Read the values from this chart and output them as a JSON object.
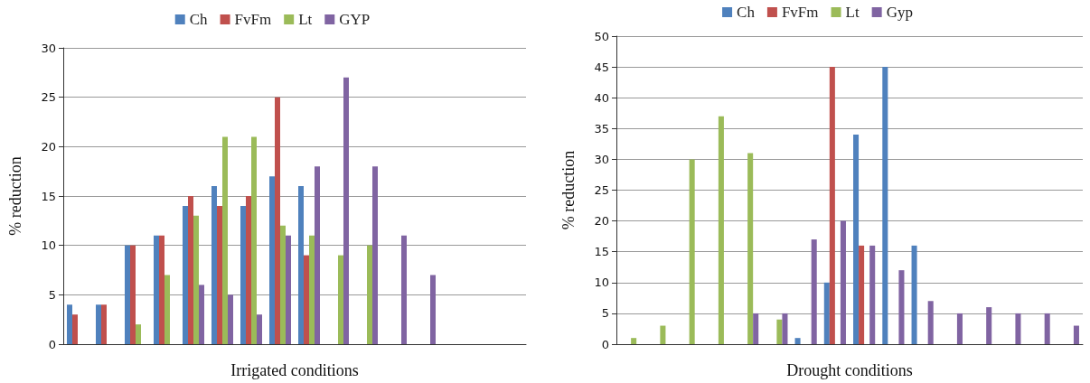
{
  "chart_data": [
    {
      "type": "bar",
      "xlabel": "Irrigated conditions",
      "ylabel": "% reduction",
      "categories": [
        null,
        null,
        null,
        null,
        null,
        null,
        null,
        null,
        null,
        null,
        null,
        null,
        null,
        null,
        null,
        null
      ],
      "series": [
        {
          "name": "Ch",
          "color": "#4f81bd",
          "values": [
            4,
            4,
            10,
            11,
            14,
            16,
            14,
            17,
            16,
            null,
            null,
            null,
            null,
            null,
            null,
            null
          ]
        },
        {
          "name": "FvFm",
          "color": "#c0504d",
          "values": [
            3,
            4,
            10,
            11,
            15,
            14,
            15,
            25,
            9,
            null,
            null,
            null,
            null,
            null,
            null,
            null
          ]
        },
        {
          "name": "Lt",
          "color": "#9bbb59",
          "values": [
            null,
            null,
            2,
            7,
            13,
            21,
            21,
            12,
            11,
            9,
            10,
            null,
            null,
            null,
            null,
            null
          ]
        },
        {
          "name": "GYP",
          "color": "#8064a2",
          "values": [
            null,
            null,
            null,
            null,
            6,
            5,
            3,
            11,
            18,
            27,
            18,
            11,
            7,
            null,
            null,
            null
          ]
        }
      ],
      "ylim": [
        0,
        30
      ],
      "yticks": [
        0,
        5,
        10,
        15,
        20,
        25,
        30
      ],
      "grid": "y",
      "legend": "top"
    },
    {
      "type": "bar",
      "xlabel": "Drought conditions",
      "ylabel": "% reduction",
      "categories": [
        null,
        null,
        null,
        null,
        null,
        null,
        null,
        null,
        null,
        null,
        null,
        null,
        null,
        null,
        null,
        null
      ],
      "series": [
        {
          "name": "Ch",
          "color": "#4f81bd",
          "values": [
            null,
            null,
            null,
            null,
            null,
            null,
            1,
            10,
            34,
            45,
            16,
            null,
            null,
            null,
            null,
            null
          ]
        },
        {
          "name": "FvFm",
          "color": "#c0504d",
          "values": [
            null,
            null,
            null,
            null,
            null,
            null,
            null,
            45,
            16,
            null,
            null,
            null,
            null,
            null,
            null,
            null
          ]
        },
        {
          "name": "Lt",
          "color": "#9bbb59",
          "values": [
            1,
            3,
            30,
            37,
            31,
            4,
            null,
            null,
            null,
            null,
            null,
            null,
            null,
            null,
            null,
            null
          ]
        },
        {
          "name": "Gyp",
          "color": "#8064a2",
          "values": [
            null,
            null,
            null,
            null,
            5,
            5,
            17,
            20,
            16,
            12,
            7,
            5,
            6,
            5,
            5,
            3
          ]
        }
      ],
      "ylim": [
        0,
        50
      ],
      "yticks": [
        0,
        5,
        10,
        15,
        20,
        25,
        30,
        35,
        40,
        45,
        50
      ],
      "grid": "y",
      "legend": "top"
    }
  ]
}
